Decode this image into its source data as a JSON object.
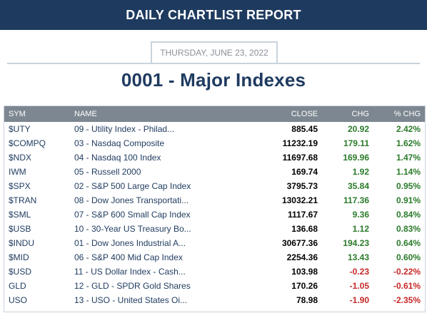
{
  "header": {
    "title": "DAILY CHARTLIST REPORT"
  },
  "report": {
    "date": "THURSDAY, JUNE 23, 2022",
    "list_title": "0001 - Major Indexes"
  },
  "table": {
    "columns": [
      "SYM",
      "NAME",
      "CLOSE",
      "CHG",
      "% CHG"
    ],
    "rows": [
      {
        "sym": "$UTY",
        "name": "09 - Utility Index - Philad...",
        "close": "885.45",
        "chg": "20.92",
        "pct": "2.42%",
        "dir": "pos"
      },
      {
        "sym": "$COMPQ",
        "name": "03 - Nasdaq Composite",
        "close": "11232.19",
        "chg": "179.11",
        "pct": "1.62%",
        "dir": "pos"
      },
      {
        "sym": "$NDX",
        "name": "04 - Nasdaq 100 Index",
        "close": "11697.68",
        "chg": "169.96",
        "pct": "1.47%",
        "dir": "pos"
      },
      {
        "sym": "IWM",
        "name": "05 - Russell 2000",
        "close": "169.74",
        "chg": "1.92",
        "pct": "1.14%",
        "dir": "pos"
      },
      {
        "sym": "$SPX",
        "name": "02 - S&P 500 Large Cap Index",
        "close": "3795.73",
        "chg": "35.84",
        "pct": "0.95%",
        "dir": "pos"
      },
      {
        "sym": "$TRAN",
        "name": "08 - Dow Jones Transportati...",
        "close": "13032.21",
        "chg": "117.36",
        "pct": "0.91%",
        "dir": "pos"
      },
      {
        "sym": "$SML",
        "name": "07 - S&P 600 Small Cap Index",
        "close": "1117.67",
        "chg": "9.36",
        "pct": "0.84%",
        "dir": "pos"
      },
      {
        "sym": "$USB",
        "name": "10 - 30-Year US Treasury Bo...",
        "close": "136.68",
        "chg": "1.12",
        "pct": "0.83%",
        "dir": "pos"
      },
      {
        "sym": "$INDU",
        "name": "01 - Dow Jones Industrial A...",
        "close": "30677.36",
        "chg": "194.23",
        "pct": "0.64%",
        "dir": "pos"
      },
      {
        "sym": "$MID",
        "name": "06 - S&P 400 Mid Cap Index",
        "close": "2254.36",
        "chg": "13.43",
        "pct": "0.60%",
        "dir": "pos"
      },
      {
        "sym": "$USD",
        "name": "11 - US Dollar Index - Cash...",
        "close": "103.98",
        "chg": "-0.23",
        "pct": "-0.22%",
        "dir": "neg"
      },
      {
        "sym": "GLD",
        "name": "12 - GLD - SPDR Gold Shares",
        "close": "170.26",
        "chg": "-1.05",
        "pct": "-0.61%",
        "dir": "neg"
      },
      {
        "sym": "USO",
        "name": "13 - USO - United States Oi...",
        "close": "78.98",
        "chg": "-1.90",
        "pct": "-2.35%",
        "dir": "neg"
      }
    ]
  },
  "colors": {
    "banner": "#1e3a5f",
    "header_row": "#7d8791",
    "positive": "#2a7a2a",
    "negative": "#c62828"
  }
}
